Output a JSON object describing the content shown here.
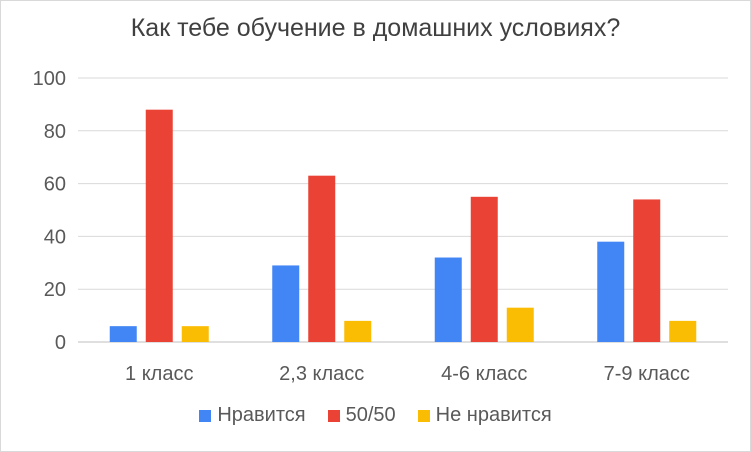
{
  "chart_data": {
    "type": "bar",
    "title": "Как тебе обучение в домашних условиях?",
    "categories": [
      "1 класс",
      "2,3 класс",
      "4-6 класс",
      "7-9 класс"
    ],
    "series": [
      {
        "name": "Нравится",
        "color": "#4285f4",
        "values": [
          6,
          29,
          32,
          38
        ]
      },
      {
        "name": "50/50",
        "color": "#ea4335",
        "values": [
          88,
          63,
          55,
          54
        ]
      },
      {
        "name": "Не нравится",
        "color": "#fbbc04",
        "values": [
          6,
          8,
          13,
          8
        ]
      }
    ],
    "ylim": [
      0,
      100
    ],
    "yticks": [
      "0",
      "20",
      "40",
      "60",
      "80",
      "100"
    ],
    "grid": true,
    "legend_position": "bottom"
  }
}
